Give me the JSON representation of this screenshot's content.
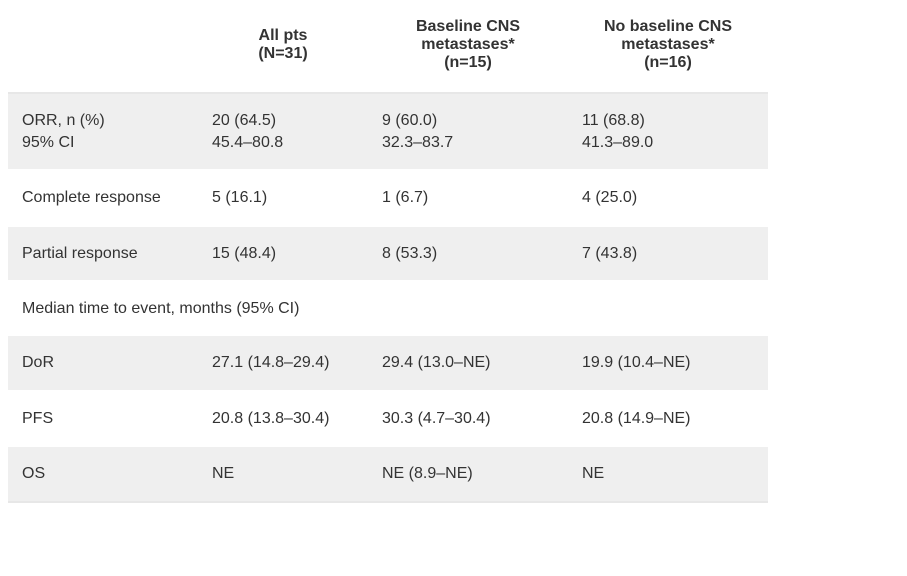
{
  "table": {
    "columns": [
      {
        "label": ""
      },
      {
        "label": "All pts\n(N=31)"
      },
      {
        "label": "Baseline CNS\nmetastases*\n(n=15)"
      },
      {
        "label": "No baseline CNS\nmetastases*\n(n=16)"
      }
    ],
    "rows": [
      {
        "stripe": true,
        "cells": [
          "ORR, n (%)\n95% CI",
          "20 (64.5)\n45.4–80.8",
          "9 (60.0)\n32.3–83.7",
          "11 (68.8)\n41.3–89.0"
        ]
      },
      {
        "stripe": false,
        "cells": [
          "Complete response",
          "5 (16.1)",
          "1 (6.7)",
          "4 (25.0)"
        ]
      },
      {
        "stripe": true,
        "cells": [
          "Partial response",
          "15 (48.4)",
          "8 (53.3)",
          "7 (43.8)"
        ]
      },
      {
        "section": true,
        "label": "Median time to event, months (95% CI)"
      },
      {
        "stripe": true,
        "cells": [
          "DoR",
          "27.1 (14.8–29.4)",
          "29.4 (13.0–NE)",
          "19.9 (10.4–NE)"
        ]
      },
      {
        "stripe": false,
        "cells": [
          "PFS",
          "20.8 (13.8–30.4)",
          "30.3 (4.7–30.4)",
          "20.8 (14.9–NE)"
        ]
      },
      {
        "stripe": true,
        "cells": [
          "OS",
          "NE",
          "NE (8.9–NE)",
          "NE"
        ]
      }
    ],
    "text_color": "#333333",
    "stripe_color": "#efefef",
    "border_color": "#e7e7e7",
    "background_color": "#ffffff",
    "font_size_pt": 12
  }
}
